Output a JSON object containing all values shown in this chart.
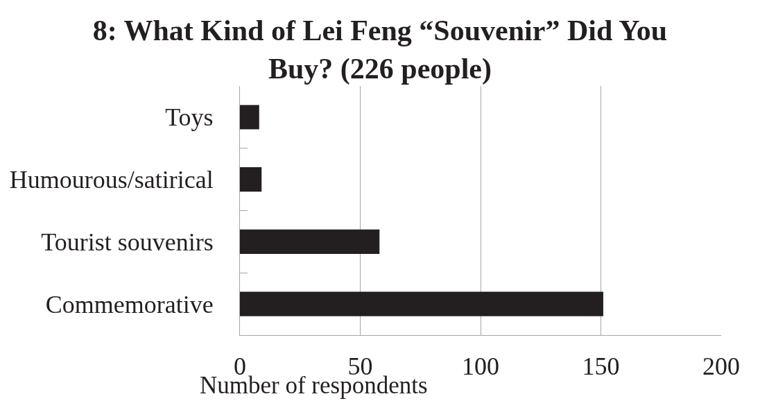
{
  "chart_data": {
    "type": "bar",
    "orientation": "horizontal",
    "title": "8: What Kind of Lei Feng “Souvenir” Did You Buy? (226 people)",
    "xlabel": "Number of respondents",
    "categories": [
      "Toys",
      "Humourous/satirical",
      "Tourist souvenirs",
      "Commemorative"
    ],
    "values": [
      8,
      9,
      58,
      151
    ],
    "color": "#231f20",
    "xlim": [
      0,
      200
    ],
    "xticks": [
      0,
      50,
      100,
      150,
      200
    ],
    "grid": "x"
  }
}
